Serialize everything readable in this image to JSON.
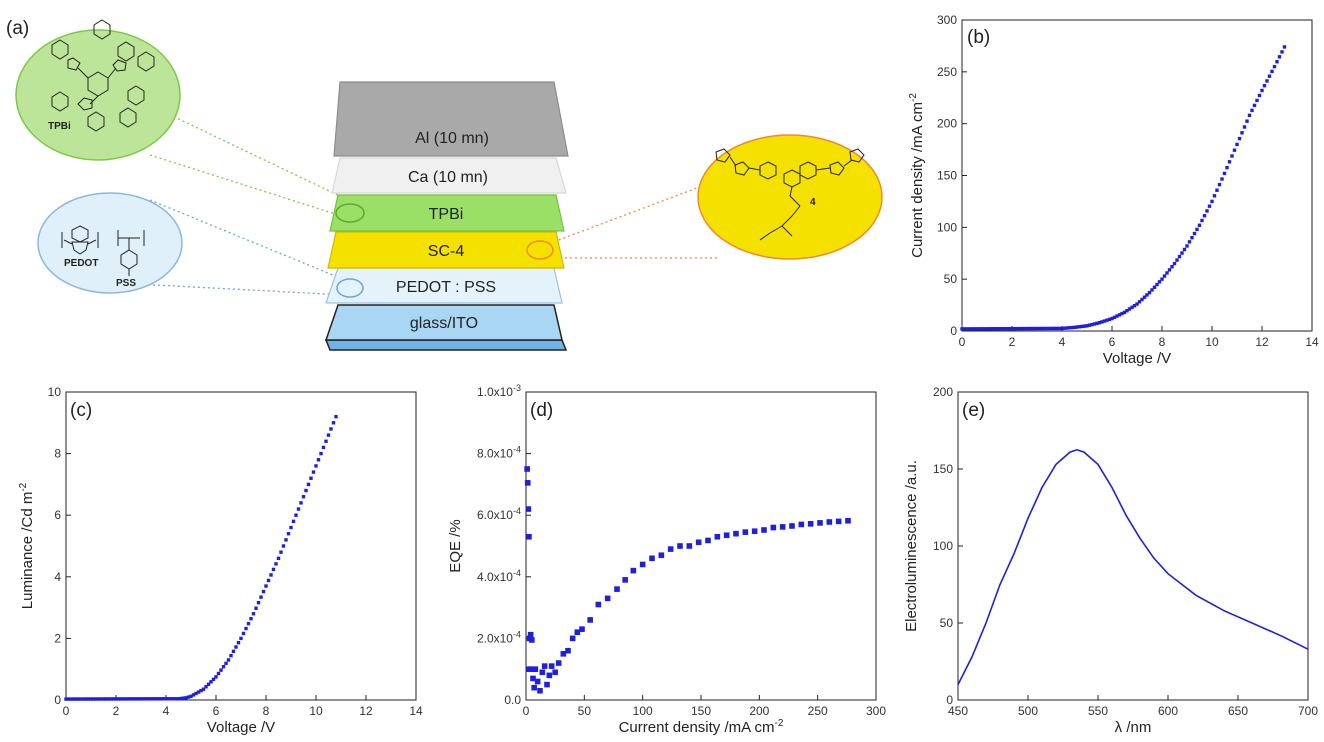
{
  "panel_a": {
    "tag": "(a)",
    "layers": [
      {
        "label": "Al (10 mn)",
        "color": "#a9a9a9",
        "edge": "#8c8c8c"
      },
      {
        "label": "Ca (10 mn)",
        "color": "#ededed",
        "edge": "#d0d0d0"
      },
      {
        "label": "TPBi",
        "color": "#9be066",
        "edge": "#78c040"
      },
      {
        "label": "SC-4",
        "color": "#f5e100",
        "edge": "#d6b800"
      },
      {
        "label": "PEDOT : PSS",
        "color": "#e4f3fb",
        "edge": "#9cc4dc"
      },
      {
        "label": "glass/ITO",
        "color": "#a9d7f3",
        "edge": "#222222"
      }
    ],
    "molecules": {
      "tpbi": "TPBi",
      "pedot": "PEDOT",
      "pss": "PSS",
      "sc4_number": "4"
    }
  },
  "chart_data": [
    {
      "id": "b",
      "tag": "(b)",
      "type": "scatter",
      "xlabel": "Voltage /V",
      "ylabel": "Current density /mA cm",
      "ylabel_sup": "-2",
      "xlim": [
        0,
        14
      ],
      "ylim": [
        0,
        300
      ],
      "xticks": [
        0,
        2,
        4,
        6,
        8,
        10,
        12,
        14
      ],
      "yticks": [
        0,
        50,
        100,
        150,
        200,
        250,
        300
      ],
      "curve": [
        [
          0,
          2
        ],
        [
          4,
          2.5
        ],
        [
          4.5,
          3.5
        ],
        [
          5,
          5
        ],
        [
          5.5,
          8
        ],
        [
          6,
          12
        ],
        [
          6.5,
          18
        ],
        [
          7,
          26
        ],
        [
          7.5,
          37
        ],
        [
          8,
          50
        ],
        [
          8.5,
          65
        ],
        [
          9,
          82
        ],
        [
          9.5,
          102
        ],
        [
          10,
          125
        ],
        [
          10.5,
          152
        ],
        [
          11,
          180
        ],
        [
          11.5,
          208
        ],
        [
          12,
          232
        ],
        [
          12.5,
          255
        ],
        [
          12.9,
          274
        ]
      ],
      "color": "#1f1fe0"
    },
    {
      "id": "c",
      "tag": "(c)",
      "type": "scatter",
      "xlabel": "Voltage /V",
      "ylabel": "Luminance /Cd m",
      "ylabel_sup": "-2",
      "xlim": [
        0,
        14
      ],
      "ylim": [
        0,
        10
      ],
      "xticks": [
        0,
        2,
        4,
        6,
        8,
        10,
        12,
        14
      ],
      "yticks": [
        0,
        2,
        4,
        6,
        8,
        10
      ],
      "curve": [
        [
          0,
          0.03
        ],
        [
          4.5,
          0.04
        ],
        [
          4.8,
          0.07
        ],
        [
          5,
          0.12
        ],
        [
          5.5,
          0.35
        ],
        [
          6,
          0.75
        ],
        [
          6.5,
          1.3
        ],
        [
          7,
          2.0
        ],
        [
          7.5,
          2.8
        ],
        [
          8,
          3.7
        ],
        [
          8.5,
          4.6
        ],
        [
          9,
          5.6
        ],
        [
          9.5,
          6.6
        ],
        [
          10,
          7.6
        ],
        [
          10.5,
          8.6
        ],
        [
          10.8,
          9.2
        ]
      ],
      "color": "#1f1fe0"
    },
    {
      "id": "d",
      "tag": "(d)",
      "type": "scatter",
      "xlabel": "Current density /mA cm",
      "xlabel_sup": "-2",
      "ylabel": "EQE /%",
      "xlim": [
        0,
        300
      ],
      "ylim": [
        0,
        0.001
      ],
      "xticks": [
        0,
        50,
        100,
        150,
        200,
        250,
        300
      ],
      "yticks": [
        0,
        0.0002,
        0.0004,
        0.0006,
        0.0008,
        0.001
      ],
      "ytick_mant": [
        "0.0",
        "2.0x10",
        "4.0x10",
        "6.0x10",
        "8.0x10",
        "1.0x10"
      ],
      "ytick_exp": [
        "",
        "-4",
        "-4",
        "-4",
        "-4",
        "-3"
      ],
      "points": [
        [
          1,
          0.00075
        ],
        [
          1.5,
          0.000705
        ],
        [
          2,
          0.00062
        ],
        [
          2.5,
          0.00053
        ],
        [
          3,
          0.0002
        ],
        [
          4,
          0.000212
        ],
        [
          5,
          0.000195
        ],
        [
          2,
          0.0001
        ],
        [
          4,
          0.0001
        ],
        [
          6,
          7e-05
        ],
        [
          7,
          4e-05
        ],
        [
          8,
          0.0001
        ],
        [
          10,
          6e-05
        ],
        [
          12,
          3e-05
        ],
        [
          14,
          9e-05
        ],
        [
          16,
          0.00011
        ],
        [
          18,
          5e-05
        ],
        [
          20,
          8e-05
        ],
        [
          22,
          0.00011
        ],
        [
          25,
          9e-05
        ],
        [
          28,
          0.00012
        ],
        [
          32,
          0.00015
        ],
        [
          36,
          0.00016
        ],
        [
          40,
          0.0002
        ],
        [
          44,
          0.00022
        ],
        [
          48,
          0.00023
        ],
        [
          55,
          0.00026
        ],
        [
          62,
          0.00031
        ],
        [
          70,
          0.00033
        ],
        [
          78,
          0.00036
        ],
        [
          85,
          0.00039
        ],
        [
          92,
          0.00042
        ],
        [
          100,
          0.00044
        ],
        [
          108,
          0.00046
        ],
        [
          116,
          0.00047
        ],
        [
          124,
          0.00049
        ],
        [
          132,
          0.0005
        ],
        [
          140,
          0.0005
        ],
        [
          148,
          0.000512
        ],
        [
          156,
          0.000518
        ],
        [
          164,
          0.00053
        ],
        [
          172,
          0.000535
        ],
        [
          180,
          0.00054
        ],
        [
          188,
          0.000545
        ],
        [
          196,
          0.000548
        ],
        [
          204,
          0.000552
        ],
        [
          212,
          0.00056
        ],
        [
          220,
          0.000562
        ],
        [
          228,
          0.000565
        ],
        [
          236,
          0.00057
        ],
        [
          244,
          0.000572
        ],
        [
          252,
          0.000575
        ],
        [
          260,
          0.000578
        ],
        [
          268,
          0.00058
        ],
        [
          276,
          0.000582
        ]
      ],
      "color": "#1f1fe0"
    },
    {
      "id": "e",
      "tag": "(e)",
      "type": "line",
      "xlabel": "λ /nm",
      "ylabel": "Electroluminescence /a.u.",
      "xlim": [
        450,
        700
      ],
      "ylim": [
        0,
        200
      ],
      "xticks": [
        450,
        500,
        550,
        600,
        650,
        700
      ],
      "yticks": [
        0,
        50,
        100,
        150,
        200
      ],
      "points": [
        [
          450,
          10
        ],
        [
          460,
          28
        ],
        [
          470,
          50
        ],
        [
          480,
          75
        ],
        [
          490,
          95
        ],
        [
          500,
          118
        ],
        [
          510,
          138
        ],
        [
          520,
          153
        ],
        [
          530,
          161
        ],
        [
          535,
          162.5
        ],
        [
          540,
          161
        ],
        [
          550,
          153
        ],
        [
          560,
          138
        ],
        [
          570,
          120
        ],
        [
          580,
          105
        ],
        [
          590,
          92
        ],
        [
          600,
          82
        ],
        [
          620,
          68
        ],
        [
          640,
          58
        ],
        [
          660,
          50
        ],
        [
          680,
          42
        ],
        [
          700,
          33
        ]
      ],
      "color": "#1f1fe0"
    }
  ]
}
